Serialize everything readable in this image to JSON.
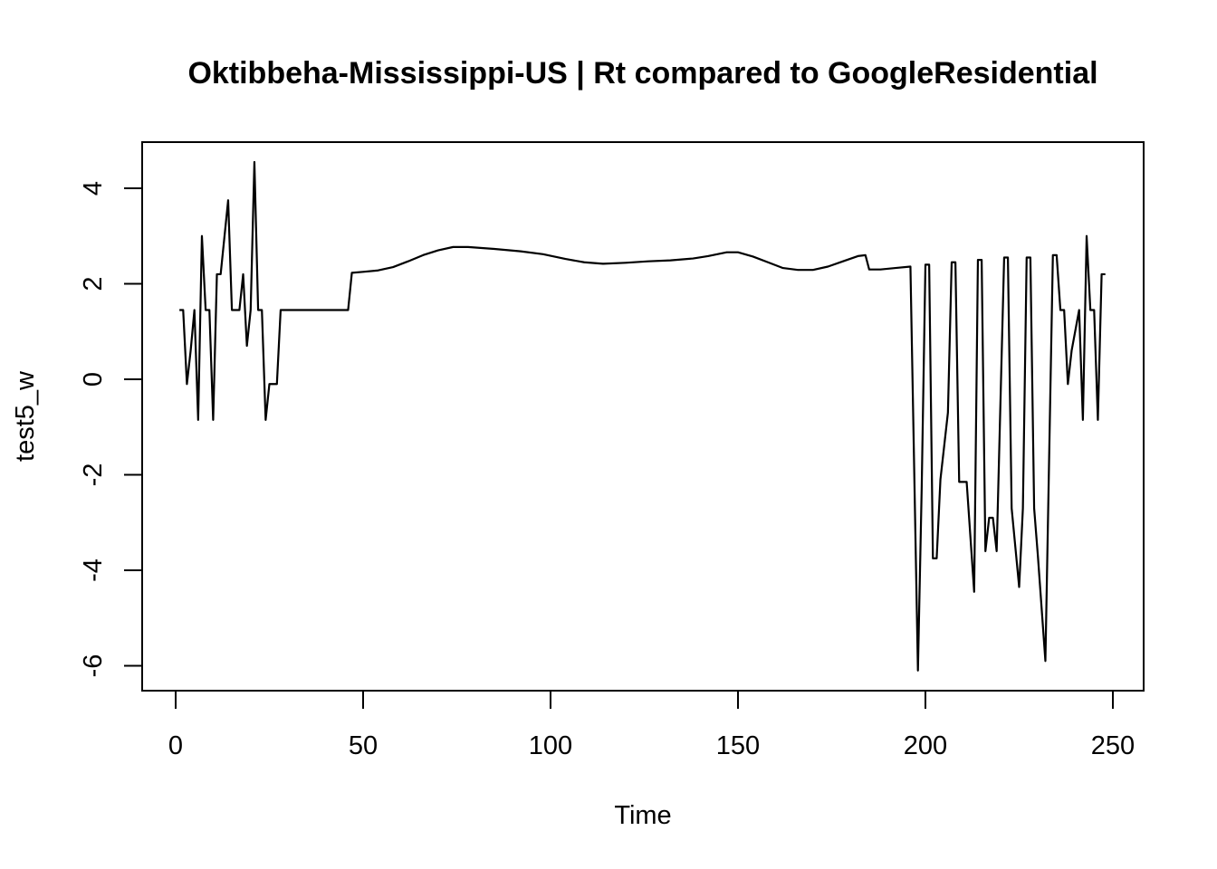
{
  "chart_data": {
    "type": "line",
    "title": "Oktibbeha-Mississippi-US | Rt compared to GoogleResidential",
    "xlabel": "Time",
    "ylabel": "test5_w",
    "xlim": [
      1,
      248
    ],
    "ylim": [
      -6.1,
      4.55
    ],
    "x_ticks": [
      0,
      50,
      100,
      150,
      200,
      250
    ],
    "y_ticks": [
      -6,
      -4,
      -2,
      0,
      2,
      4
    ],
    "grid": false,
    "line_color": "#000000",
    "points": [
      [
        1,
        1.45
      ],
      [
        2,
        1.45
      ],
      [
        3,
        -0.1
      ],
      [
        4,
        0.6
      ],
      [
        5,
        1.45
      ],
      [
        6,
        -0.85
      ],
      [
        7,
        3.0
      ],
      [
        8,
        1.45
      ],
      [
        9,
        1.45
      ],
      [
        10,
        -0.85
      ],
      [
        11,
        2.2
      ],
      [
        12,
        2.2
      ],
      [
        14,
        3.75
      ],
      [
        15,
        1.45
      ],
      [
        17,
        1.45
      ],
      [
        18,
        2.2
      ],
      [
        19,
        0.7
      ],
      [
        20,
        1.45
      ],
      [
        21,
        4.55
      ],
      [
        22,
        1.45
      ],
      [
        23,
        1.45
      ],
      [
        24,
        -0.85
      ],
      [
        25,
        -0.1
      ],
      [
        27,
        -0.1
      ],
      [
        28,
        1.45
      ],
      [
        46,
        1.45
      ],
      [
        47,
        2.23
      ],
      [
        50,
        2.25
      ],
      [
        54,
        2.28
      ],
      [
        58,
        2.35
      ],
      [
        62,
        2.47
      ],
      [
        66,
        2.6
      ],
      [
        70,
        2.7
      ],
      [
        74,
        2.77
      ],
      [
        78,
        2.77
      ],
      [
        85,
        2.73
      ],
      [
        92,
        2.68
      ],
      [
        98,
        2.62
      ],
      [
        104,
        2.52
      ],
      [
        109,
        2.45
      ],
      [
        114,
        2.42
      ],
      [
        120,
        2.44
      ],
      [
        126,
        2.47
      ],
      [
        132,
        2.49
      ],
      [
        138,
        2.53
      ],
      [
        142,
        2.58
      ],
      [
        147,
        2.66
      ],
      [
        150,
        2.66
      ],
      [
        154,
        2.57
      ],
      [
        158,
        2.45
      ],
      [
        162,
        2.33
      ],
      [
        166,
        2.29
      ],
      [
        170,
        2.29
      ],
      [
        174,
        2.36
      ],
      [
        178,
        2.47
      ],
      [
        182,
        2.58
      ],
      [
        184,
        2.6
      ],
      [
        185,
        2.3
      ],
      [
        188,
        2.3
      ],
      [
        192,
        2.33
      ],
      [
        196,
        2.36
      ],
      [
        198,
        -6.1
      ],
      [
        199,
        -2.3
      ],
      [
        200,
        2.4
      ],
      [
        201,
        2.4
      ],
      [
        202,
        -3.75
      ],
      [
        203,
        -3.75
      ],
      [
        204,
        -2.1
      ],
      [
        206,
        -0.7
      ],
      [
        207,
        2.45
      ],
      [
        208,
        2.45
      ],
      [
        209,
        -2.15
      ],
      [
        211,
        -2.15
      ],
      [
        213,
        -4.45
      ],
      [
        214,
        2.5
      ],
      [
        215,
        2.5
      ],
      [
        216,
        -3.6
      ],
      [
        217,
        -2.9
      ],
      [
        218,
        -2.9
      ],
      [
        219,
        -3.6
      ],
      [
        221,
        2.55
      ],
      [
        222,
        2.55
      ],
      [
        223,
        -2.7
      ],
      [
        225,
        -4.35
      ],
      [
        226,
        -2.7
      ],
      [
        227,
        2.55
      ],
      [
        228,
        2.55
      ],
      [
        229,
        -2.7
      ],
      [
        230,
        -3.7
      ],
      [
        232,
        -5.9
      ],
      [
        234,
        2.6
      ],
      [
        235,
        2.6
      ],
      [
        236,
        1.45
      ],
      [
        237,
        1.45
      ],
      [
        238,
        -0.1
      ],
      [
        239,
        0.6
      ],
      [
        241,
        1.45
      ],
      [
        242,
        -0.85
      ],
      [
        243,
        3.0
      ],
      [
        244,
        1.45
      ],
      [
        245,
        1.45
      ],
      [
        246,
        -0.85
      ],
      [
        247,
        2.2
      ],
      [
        248,
        2.2
      ]
    ]
  }
}
